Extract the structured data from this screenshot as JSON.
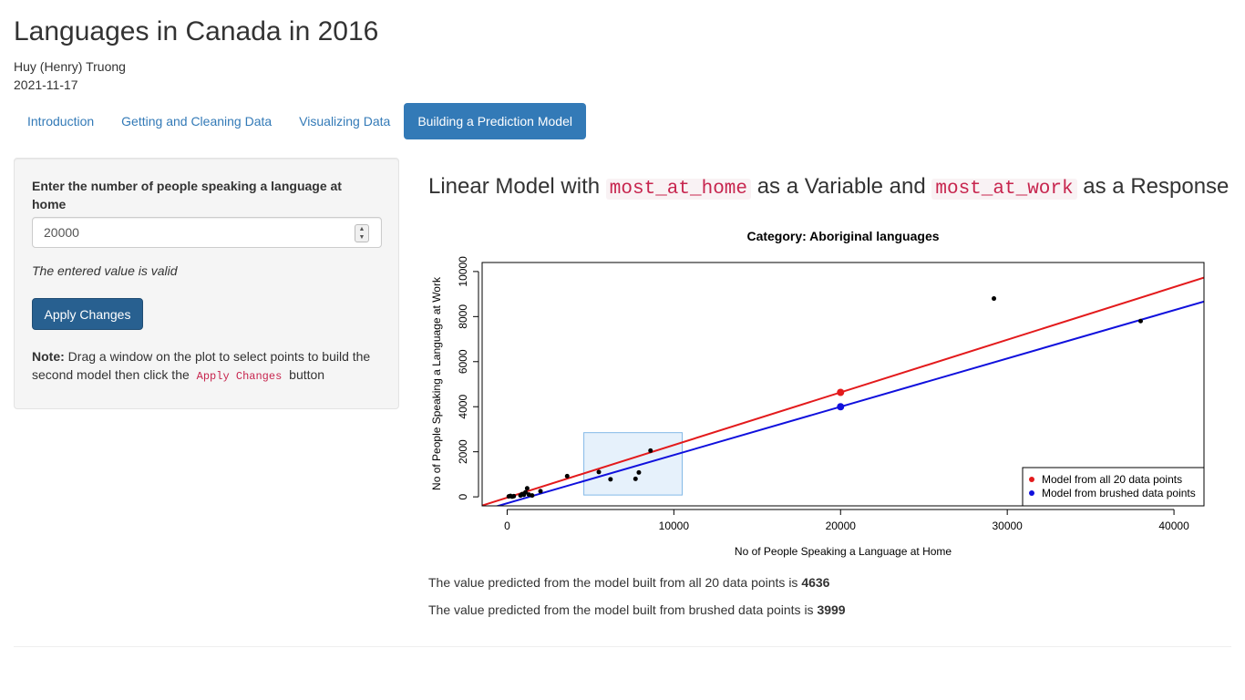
{
  "header": {
    "title": "Languages in Canada in 2016",
    "author": "Huy (Henry) Truong",
    "date": "2021-11-17"
  },
  "tabs": [
    {
      "label": "Introduction",
      "active": false
    },
    {
      "label": "Getting and Cleaning Data",
      "active": false
    },
    {
      "label": "Visualizing Data",
      "active": false
    },
    {
      "label": "Building a Prediction Model",
      "active": true
    }
  ],
  "sidebar": {
    "input_label": "Enter the number of people speaking a language at home",
    "input_value": "20000",
    "valid_message": "The entered value is valid",
    "apply_label": "Apply Changes",
    "note_bold": "Note:",
    "note_text": "Drag a window on the plot to select points to build the second model then click the",
    "note_code": "Apply Changes",
    "note_end": "button"
  },
  "main": {
    "heading_pre": "Linear Model with",
    "heading_var": "most_at_home",
    "heading_mid": "as a Variable and",
    "heading_resp": "most_at_work",
    "heading_post": "as a Response",
    "pred1_text": "The value predicted from the model built from all 20 data points is",
    "pred1_value": "4636",
    "pred2_text": "The value predicted from the model built from brushed data points is",
    "pred2_value": "3999"
  },
  "chart_data": {
    "type": "scatter",
    "title": "Category: Aboriginal languages",
    "xlabel": "No of People Speaking a Language at Home",
    "ylabel": "No of People Speaking a Language at Work",
    "xlim": [
      -1500,
      41800
    ],
    "ylim": [
      -400,
      10400
    ],
    "xticks": [
      0,
      10000,
      20000,
      30000,
      40000
    ],
    "yticks": [
      0,
      2000,
      4000,
      6000,
      8000,
      10000
    ],
    "points": [
      [
        100,
        20
      ],
      [
        200,
        40
      ],
      [
        300,
        10
      ],
      [
        400,
        30
      ],
      [
        800,
        60
      ],
      [
        900,
        120
      ],
      [
        1000,
        90
      ],
      [
        1100,
        200
      ],
      [
        1200,
        380
      ],
      [
        1300,
        100
      ],
      [
        1500,
        60
      ],
      [
        2000,
        250
      ],
      [
        3600,
        920
      ],
      [
        5500,
        1100
      ],
      [
        6200,
        780
      ],
      [
        7700,
        800
      ],
      [
        7900,
        1080
      ],
      [
        8600,
        2050
      ],
      [
        29200,
        8800
      ],
      [
        38000,
        7800
      ]
    ],
    "models": [
      {
        "name": "Model from all 20 data points",
        "color": "#e31a1c",
        "intercept": -35,
        "slope": 0.23355
      },
      {
        "name": "Model from brushed data points",
        "color": "#1010dd",
        "intercept": -285,
        "slope": 0.2142
      }
    ],
    "predictions": [
      {
        "x": 20000,
        "y": 4636,
        "color": "#e31a1c"
      },
      {
        "x": 20000,
        "y": 3999,
        "color": "#1010dd"
      }
    ],
    "brush": {
      "x0": 4600,
      "x1": 10500,
      "y0": 80,
      "y1": 2850
    },
    "legend_position": "bottom-right"
  }
}
